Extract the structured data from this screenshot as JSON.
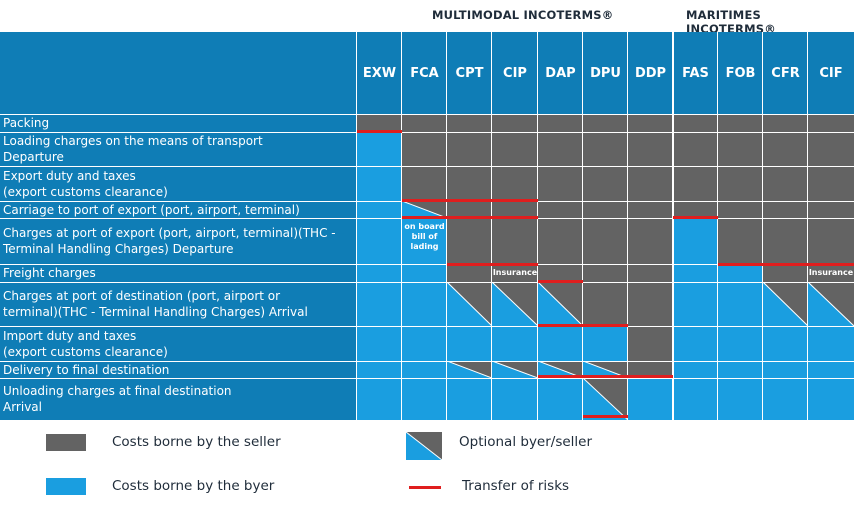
{
  "groups": {
    "multimodal": "MULTIMODAL INCOTERMS®",
    "maritime": "MARITIMES INCOTERMS®"
  },
  "colors": {
    "seller": "#636363",
    "buyer": "#1a9ee0",
    "header": "#0f7db6",
    "risk": "#e01e1e"
  },
  "terms": [
    "EXW",
    "FCA",
    "CPT",
    "CIP",
    "DAP",
    "DPU",
    "DDP",
    "FAS",
    "FOB",
    "CFR",
    "CIF"
  ],
  "rows": [
    {
      "lines": [
        "Packing"
      ]
    },
    {
      "lines": [
        "Loading charges on the means of transport",
        "Departure"
      ]
    },
    {
      "lines": [
        "Export duty and taxes",
        "(export customs clearance)"
      ]
    },
    {
      "lines": [
        "Carriage to port of export (port, airport, terminal)"
      ]
    },
    {
      "lines": [
        "Charges at port of export (port, airport, terminal)(THC -",
        "Terminal Handling Charges) Departure"
      ]
    },
    {
      "lines": [
        "Freight charges"
      ]
    },
    {
      "lines": [
        "Charges at port of destination (port, airport or",
        "terminal)(THC - Terminal Handling Charges) Arrival"
      ]
    },
    {
      "lines": [
        "Import duty and taxes",
        "(export customs clearance)"
      ]
    },
    {
      "lines": [
        "Delivery to final destination"
      ]
    },
    {
      "lines": [
        "Unloading charges at final destination",
        "Arrival"
      ]
    }
  ],
  "cost_matrix": [
    [
      "S",
      "S",
      "S",
      "S",
      "S",
      "S",
      "S",
      "S",
      "S",
      "S",
      "S"
    ],
    [
      "B",
      "S",
      "S",
      "S",
      "S",
      "S",
      "S",
      "S",
      "S",
      "S",
      "S"
    ],
    [
      "B",
      "S",
      "S",
      "S",
      "S",
      "S",
      "S",
      "S",
      "S",
      "S",
      "S"
    ],
    [
      "B",
      "O",
      "S",
      "S",
      "S",
      "S",
      "S",
      "S",
      "S",
      "S",
      "S"
    ],
    [
      "B",
      "B",
      "S",
      "S",
      "S",
      "S",
      "S",
      "B",
      "S",
      "S",
      "S"
    ],
    [
      "B",
      "B",
      "S",
      "S",
      "S",
      "S",
      "S",
      "B",
      "B",
      "S",
      "S"
    ],
    [
      "B",
      "B",
      "O",
      "O",
      "O",
      "S",
      "S",
      "B",
      "B",
      "O",
      "O"
    ],
    [
      "B",
      "B",
      "B",
      "B",
      "B",
      "B",
      "S",
      "B",
      "B",
      "B",
      "B"
    ],
    [
      "B",
      "B",
      "O",
      "O",
      "O",
      "O",
      "S",
      "B",
      "B",
      "B",
      "B"
    ],
    [
      "B",
      "B",
      "B",
      "B",
      "B",
      "O",
      "B",
      "B",
      "B",
      "B",
      "B"
    ]
  ],
  "notes": {
    "fca_onboard": "on board bill of lading",
    "cip_insurance": "Insurance",
    "cif_insurance": "Insurance"
  },
  "legend": {
    "seller": "Costs borne by the seller",
    "buyer": "Costs borne by the byer",
    "optional": "Optional byer/seller",
    "risk": "Transfer of risks"
  }
}
